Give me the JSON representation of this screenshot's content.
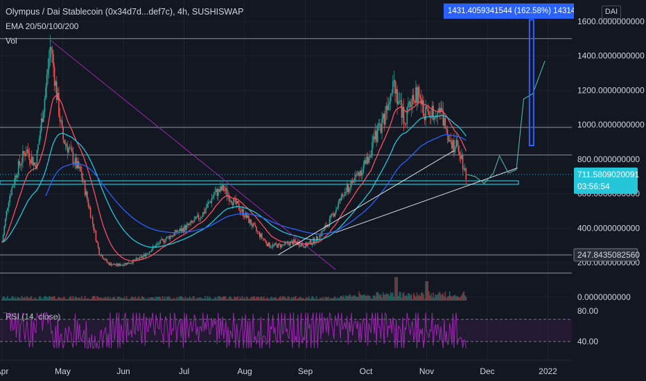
{
  "header": {
    "symbol_line": "Olympus / Dai Stablecoin (0x34d7d...def7c), 4h, SUSHISWAP",
    "ema_line": "EMA 20/50/100/200",
    "vol_label": "Vol",
    "currency_badge": "DAI",
    "measure_label": "1431.4059341544 (162.58%) 14314"
  },
  "colors": {
    "background": "#131722",
    "up": "#26a69a",
    "down": "#ef5350",
    "ema20": "#f7525f",
    "ema50": "#26c6da",
    "ema100": "#2962ff",
    "rsi": "#9c27b0",
    "trendline": "#9c27b0",
    "price_badge": "#26c6da",
    "measure": "#2962ff"
  },
  "price_badges": [
    {
      "value_text": "711.5809020091",
      "sub_text": "03:56:54"
    },
    {
      "value_text": "247.8435082560"
    }
  ],
  "rsi_legend": "RSI (14, close)",
  "chart_data": {
    "type": "candlestick",
    "title": "Olympus / Dai Stablecoin (0x34d7d...def7c), 4h, SUSHISWAP",
    "y_axis": {
      "ticks": [
        0,
        200,
        400,
        600,
        800,
        1000,
        1200,
        1400,
        1600
      ],
      "tick_labels": [
        "0.0000000000",
        "200.0000000000",
        "400.0000000000",
        "600.0000000000",
        "800.0000000000",
        "1000.0000000000",
        "1200.0000000000",
        "1400.0000000000",
        "1600.0000000000"
      ],
      "range": [
        0,
        1620
      ]
    },
    "x_axis": {
      "tick_labels": [
        "Apr",
        "May",
        "Jun",
        "Jul",
        "Aug",
        "Sep",
        "Oct",
        "Nov",
        "Dec",
        "2022"
      ],
      "tick_months": [
        0,
        1,
        2,
        3,
        4,
        5,
        6,
        7,
        8,
        9
      ]
    },
    "price_path": [
      {
        "m": 0.0,
        "p": 320
      },
      {
        "m": 0.1,
        "p": 560
      },
      {
        "m": 0.25,
        "p": 740
      },
      {
        "m": 0.4,
        "p": 860
      },
      {
        "m": 0.55,
        "p": 760
      },
      {
        "m": 0.7,
        "p": 1150
      },
      {
        "m": 0.8,
        "p": 1470
      },
      {
        "m": 0.9,
        "p": 1180
      },
      {
        "m": 1.0,
        "p": 920
      },
      {
        "m": 1.1,
        "p": 860
      },
      {
        "m": 1.2,
        "p": 780
      },
      {
        "m": 1.3,
        "p": 720
      },
      {
        "m": 1.45,
        "p": 500
      },
      {
        "m": 1.6,
        "p": 260
      },
      {
        "m": 1.75,
        "p": 195
      },
      {
        "m": 1.9,
        "p": 185
      },
      {
        "m": 2.1,
        "p": 200
      },
      {
        "m": 2.3,
        "p": 230
      },
      {
        "m": 2.5,
        "p": 290
      },
      {
        "m": 2.7,
        "p": 340
      },
      {
        "m": 2.9,
        "p": 380
      },
      {
        "m": 3.1,
        "p": 420
      },
      {
        "m": 3.3,
        "p": 480
      },
      {
        "m": 3.5,
        "p": 600
      },
      {
        "m": 3.65,
        "p": 630
      },
      {
        "m": 3.8,
        "p": 560
      },
      {
        "m": 4.0,
        "p": 480
      },
      {
        "m": 4.2,
        "p": 380
      },
      {
        "m": 4.4,
        "p": 300
      },
      {
        "m": 4.6,
        "p": 300
      },
      {
        "m": 4.8,
        "p": 320
      },
      {
        "m": 5.0,
        "p": 300
      },
      {
        "m": 5.2,
        "p": 340
      },
      {
        "m": 5.4,
        "p": 440
      },
      {
        "m": 5.6,
        "p": 580
      },
      {
        "m": 5.8,
        "p": 680
      },
      {
        "m": 6.0,
        "p": 780
      },
      {
        "m": 6.15,
        "p": 920
      },
      {
        "m": 6.3,
        "p": 1050
      },
      {
        "m": 6.45,
        "p": 1280
      },
      {
        "m": 6.55,
        "p": 1120
      },
      {
        "m": 6.65,
        "p": 1020
      },
      {
        "m": 6.75,
        "p": 1150
      },
      {
        "m": 6.85,
        "p": 1180
      },
      {
        "m": 6.95,
        "p": 1080
      },
      {
        "m": 7.05,
        "p": 1060
      },
      {
        "m": 7.2,
        "p": 1100
      },
      {
        "m": 7.35,
        "p": 960
      },
      {
        "m": 7.45,
        "p": 880
      },
      {
        "m": 7.55,
        "p": 860
      },
      {
        "m": 7.62,
        "p": 740
      },
      {
        "m": 7.66,
        "p": 712
      }
    ],
    "projection": [
      {
        "m": 7.66,
        "p": 712
      },
      {
        "m": 7.8,
        "p": 700
      },
      {
        "m": 7.95,
        "p": 660
      },
      {
        "m": 8.1,
        "p": 720
      },
      {
        "m": 8.2,
        "p": 820
      },
      {
        "m": 8.35,
        "p": 720
      },
      {
        "m": 8.48,
        "p": 740
      },
      {
        "m": 8.6,
        "p": 1150
      },
      {
        "m": 8.75,
        "p": 1180
      },
      {
        "m": 8.95,
        "p": 1370
      }
    ],
    "horizontal_levels": [
      1500,
      985,
      825,
      245,
      140
    ],
    "zone": [
      675,
      655
    ],
    "trendlines": [
      {
        "from": {
          "m": 0.8,
          "p": 1490
        },
        "to": {
          "m": 5.5,
          "p": 160
        },
        "color": "trendline"
      },
      {
        "from": {
          "m": 4.55,
          "p": 245
        },
        "to": {
          "m": 7.45,
          "p": 850
        },
        "color": "white"
      },
      {
        "from": {
          "m": 5.5,
          "p": 375
        },
        "to": {
          "m": 8.5,
          "p": 750
        },
        "color": "white"
      }
    ],
    "measure": {
      "from": {
        "m": 8.73,
        "p": 880
      },
      "to": {
        "m": 8.73,
        "p": 1610
      }
    },
    "rsi": {
      "levels": [
        70,
        30
      ],
      "tick_labels": [
        "80.00",
        "40.00"
      ]
    }
  }
}
